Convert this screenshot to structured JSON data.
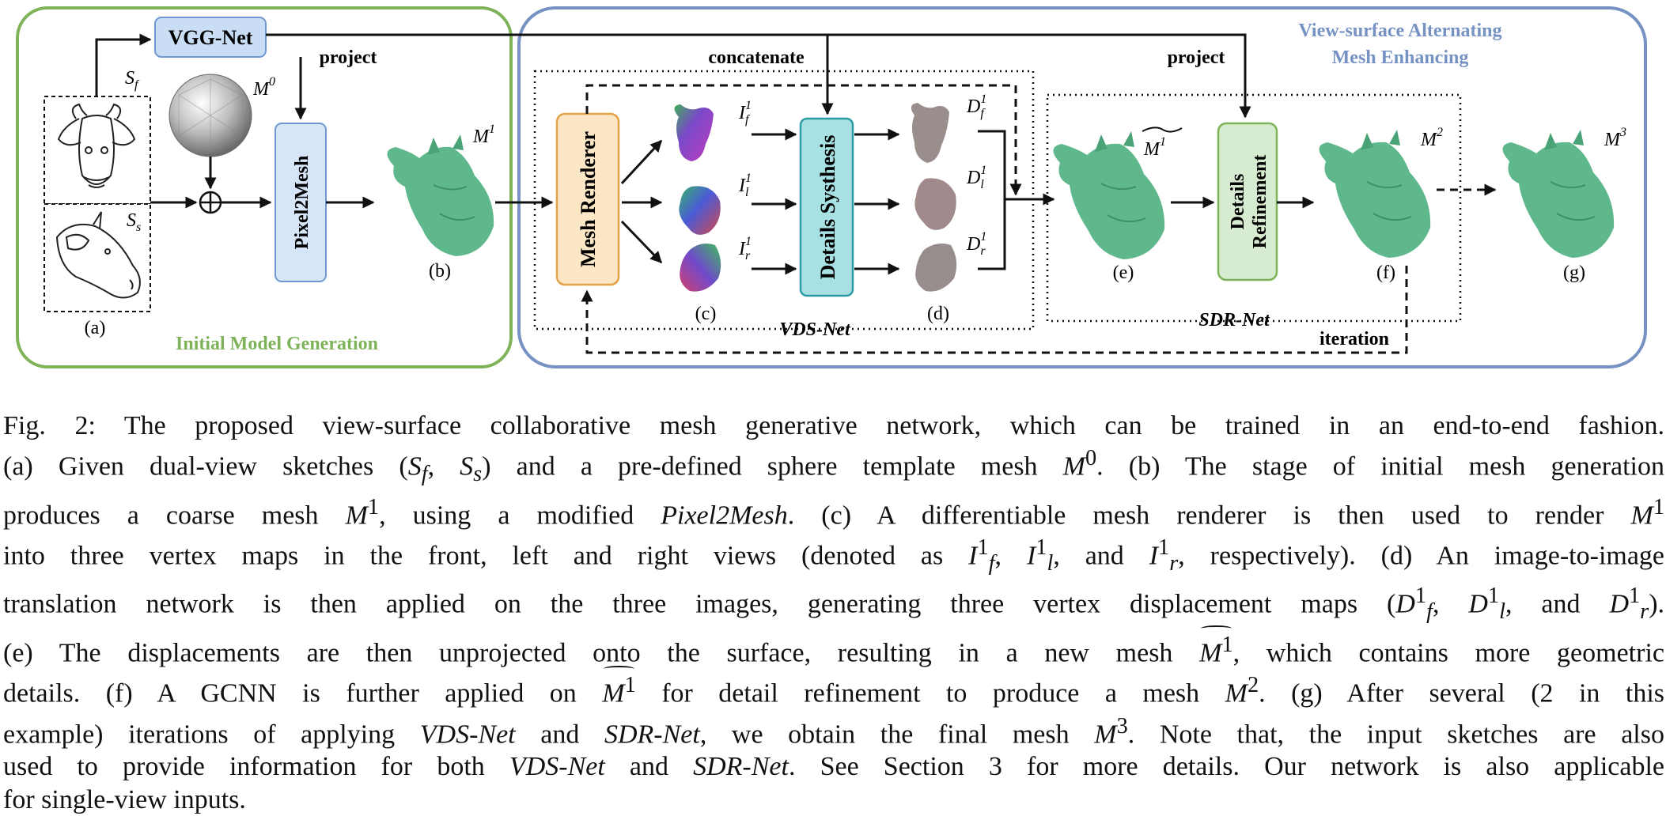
{
  "diagram": {
    "panels": {
      "initial": {
        "title": "Initial Model Generation",
        "color": "#7fb359"
      },
      "alternating": {
        "title_line1": "View-surface Alternating",
        "title_line2": "Mesh Enhancing",
        "color": "#7592c2"
      }
    },
    "blocks": {
      "vgg": {
        "label": "VGG-Net",
        "fill": "#c9ddf4",
        "stroke": "#6f98d0"
      },
      "pixel2mesh": {
        "label": "Pixel2Mesh",
        "fill": "#d6e6f8",
        "stroke": "#6f98d0"
      },
      "renderer": {
        "label": "Mesh Renderer",
        "fill": "#fbe6c6",
        "stroke": "#e3a347"
      },
      "synthesis": {
        "label": "Details Systhesis",
        "fill": "#a7e1e3",
        "stroke": "#2e9aa1"
      },
      "refinement": {
        "label_line1": "Details",
        "label_line2": "Refinement",
        "fill": "#d6ebcf",
        "stroke": "#7fb359"
      }
    },
    "edge_labels": {
      "project1": "project",
      "project2": "project",
      "concatenate": "concatenate",
      "iteration": "iteration"
    },
    "group_labels": {
      "vds": "VDS-Net",
      "sdr": "SDR-Net"
    },
    "symbols": {
      "sf": "S",
      "sf_sub": "f",
      "ss": "S",
      "ss_sub": "s",
      "m0": "M",
      "m0_sup": "0",
      "m1": "M",
      "m1_sup": "1",
      "m1t": "M",
      "m1t_sup": "1",
      "m2": "M",
      "m2_sup": "2",
      "m3": "M",
      "m3_sup": "3",
      "if": "I",
      "if_sup": "1",
      "if_sub": "f",
      "il": "I",
      "il_sup": "1",
      "il_sub": "l",
      "ir": "I",
      "ir_sup": "1",
      "ir_sub": "r",
      "df": "D",
      "df_sup": "1",
      "df_sub": "f",
      "dl": "D",
      "dl_sup": "1",
      "dl_sub": "l",
      "dr": "D",
      "dr_sup": "1",
      "dr_sub": "r",
      "oplus": "⊕"
    },
    "subfig_labels": {
      "a": "(a)",
      "b": "(b)",
      "c": "(c)",
      "d": "(d)",
      "e": "(e)",
      "f": "(f)",
      "g": "(g)"
    },
    "mesh_color": "#5fb88c"
  },
  "caption": {
    "l1": "Fig. 2: The proposed view-surface collaborative mesh generative network, which can be trained in an end-to-end fashion.",
    "l2a": "(a) Given dual-view sketches (",
    "l2_sf": "S",
    "l2_sf_sub": "f",
    "l2_comma": ", ",
    "l2_ss": "S",
    "l2_ss_sub": "s",
    "l2b": ") and a pre-defined sphere template mesh ",
    "l2_m": "M",
    "l2_m_sup": "0",
    "l2c": ". (b) The stage of initial mesh generation",
    "l3a": "produces a coarse mesh ",
    "l3_m": "M",
    "l3_m_sup": "1",
    "l3b": ", using a modified ",
    "l3_p2m": "Pixel2Mesh",
    "l3c": ". (c) A differentiable mesh renderer is then used to render ",
    "l3_m2": "M",
    "l3_m2_sup": "1",
    "l4a": "into three vertex maps in the front, left and right views (denoted as ",
    "l4_if": "I",
    "l4_if_sup": "1",
    "l4_if_sub": "f",
    "l4_c1": ", ",
    "l4_il": "I",
    "l4_il_sup": "1",
    "l4_il_sub": "l",
    "l4_c2": ", and ",
    "l4_ir": "I",
    "l4_ir_sup": "1",
    "l4_ir_sub": "r",
    "l4b": ", respectively). (d) An image-to-image",
    "l5a": "translation network is then applied on the three images, generating three vertex displacement maps (",
    "l5_df": "D",
    "l5_df_sup": "1",
    "l5_df_sub": "f",
    "l5_c1": ", ",
    "l5_dl": "D",
    "l5_dl_sup": "1",
    "l5_dl_sub": "l",
    "l5_c2": ", and ",
    "l5_dr": "D",
    "l5_dr_sup": "1",
    "l5_dr_sub": "r",
    "l5b": ").",
    "l6a": "(e) The displacements are then unprojected onto the surface, resulting in a new mesh ",
    "l6_m": "M",
    "l6_m_sup": "1",
    "l6b": ", which contains more geometric",
    "l7a": "details. (f) A GCNN is further applied on ",
    "l7_m": "M",
    "l7_m_sup": "1",
    "l7b": " for detail refinement to produce a mesh ",
    "l7_m2": "M",
    "l7_m2_sup": "2",
    "l7c": ". (g) After several (2 in this",
    "l8a": "example) iterations of applying ",
    "l8_vds": "VDS-Net",
    "l8b": " and ",
    "l8_sdr": "SDR-Net",
    "l8c": ", we obtain the final mesh ",
    "l8_m": "M",
    "l8_m_sup": "3",
    "l8d": ". Note that, the input sketches are also",
    "l9a": "used to provide information for both ",
    "l9_vds": "VDS-Net",
    "l9b": " and ",
    "l9_sdr": "SDR-Net",
    "l9c": ". See Section 3 for more details. Our network is also applicable",
    "l10": "for single-view inputs."
  }
}
